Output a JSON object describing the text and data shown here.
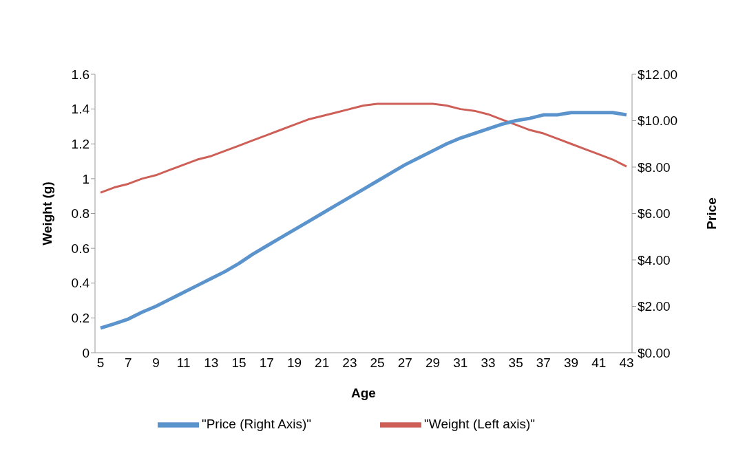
{
  "chart_data": {
    "type": "line",
    "xlabel": "Age",
    "ylabel": "Weight (g)",
    "y2label": "Price",
    "categories": [
      "5",
      null,
      "7",
      null,
      "9",
      null,
      "11",
      null,
      "13",
      null,
      "15",
      null,
      "17",
      null,
      "19",
      null,
      "21",
      null,
      "23",
      null,
      "25",
      null,
      "27",
      null,
      "29",
      null,
      "31",
      null,
      "33",
      null,
      "35",
      null,
      "37",
      null,
      "39",
      null,
      "41",
      null,
      "43"
    ],
    "series": [
      {
        "name": "\"Weight (Left axis)\"",
        "color": "#cd5f57",
        "values": [
          0.92,
          0.95,
          0.97,
          1.0,
          1.02,
          1.05,
          1.08,
          1.11,
          1.13,
          1.16,
          1.19,
          1.22,
          1.25,
          1.28,
          1.31,
          1.34,
          1.36,
          1.38,
          1.4,
          1.42,
          1.43,
          1.43,
          1.43,
          1.43,
          1.43,
          1.42,
          1.4,
          1.39,
          1.37,
          1.34,
          1.31,
          1.28,
          1.26,
          1.23,
          1.2,
          1.17,
          1.14,
          1.11,
          1.07
        ]
      },
      {
        "name": "\"Price (Right Axis)\"",
        "color": "#5b93cc",
        "axis": "y2",
        "values": [
          1.06,
          1.25,
          1.45,
          1.75,
          2.0,
          2.3,
          2.6,
          2.9,
          3.2,
          3.5,
          3.85,
          4.25,
          4.6,
          4.95,
          5.3,
          5.65,
          6.0,
          6.35,
          6.7,
          7.05,
          7.4,
          7.75,
          8.1,
          8.4,
          8.7,
          9.0,
          9.25,
          9.45,
          9.65,
          9.85,
          10.0,
          10.1,
          10.25,
          10.25,
          10.35,
          10.35,
          10.35,
          10.35,
          10.25
        ]
      }
    ],
    "ylim": [
      0,
      1.6
    ],
    "yticks": [
      0,
      0.2,
      0.4,
      0.6,
      0.8,
      1,
      1.2,
      1.4,
      1.6
    ],
    "y2lim": [
      0,
      12
    ],
    "y2ticks": [
      {
        "value": 0,
        "label": "$0.00"
      },
      {
        "value": 2,
        "label": "$2.00"
      },
      {
        "value": 4,
        "label": "$4.00"
      },
      {
        "value": 6,
        "label": "$6.00"
      },
      {
        "value": 8,
        "label": "$8.00"
      },
      {
        "value": 10,
        "label": "$10.00"
      },
      {
        "value": 12,
        "label": "$12.00"
      }
    ],
    "grid": false,
    "legend": "bottom",
    "marker": "none",
    "line_style": "solid"
  }
}
